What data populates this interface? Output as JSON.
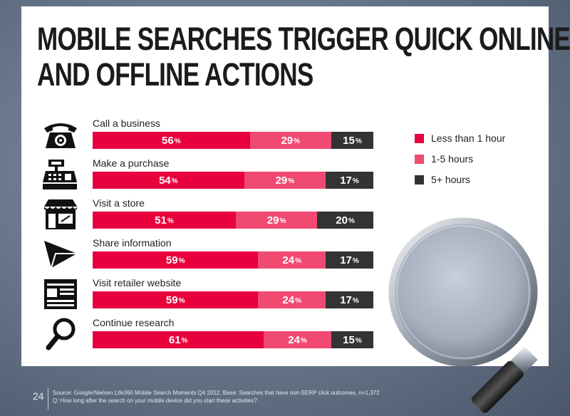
{
  "title": {
    "line1": "MOBILE SEARCHES TRIGGER QUICK ONLINE",
    "line2": "AND OFFLINE ACTIONS"
  },
  "colors": {
    "less_than_1_hour": "#e8003d",
    "one_to_five_hours": "#f04a72",
    "five_plus_hours": "#333333"
  },
  "legend": [
    {
      "label": "Less than 1 hour",
      "color": "#e8003d"
    },
    {
      "label": "1-5 hours",
      "color": "#f04a72"
    },
    {
      "label": "5+ hours",
      "color": "#333333"
    }
  ],
  "chart_data": {
    "type": "bar",
    "orientation": "horizontal",
    "stacked": true,
    "unit": "%",
    "categories": [
      "Call a business",
      "Make a purchase",
      "Visit a store",
      "Share information",
      "Visit retailer website",
      "Continue research"
    ],
    "icons": [
      "telephone-icon",
      "cash-register-icon",
      "storefront-icon",
      "paper-plane-icon",
      "webpage-icon",
      "magnifying-glass-icon"
    ],
    "series": [
      {
        "name": "Less than 1 hour",
        "color": "#e8003d",
        "values": [
          56,
          54,
          51,
          59,
          59,
          61
        ]
      },
      {
        "name": "1-5 hours",
        "color": "#f04a72",
        "values": [
          29,
          29,
          29,
          24,
          24,
          24
        ]
      },
      {
        "name": "5+ hours",
        "color": "#333333",
        "values": [
          15,
          17,
          20,
          17,
          17,
          15
        ]
      }
    ],
    "xlim": [
      0,
      100
    ],
    "legend_position": "right"
  },
  "footer": {
    "page_number": "24",
    "source": "Source: Google/Nielsen Life360 Mobile Search Moments Q4 2012. Base: Searches that have non-SERP click outcomes, n=1,372",
    "question": "Q: How long after the search on your mobile device did you start these activities?"
  }
}
